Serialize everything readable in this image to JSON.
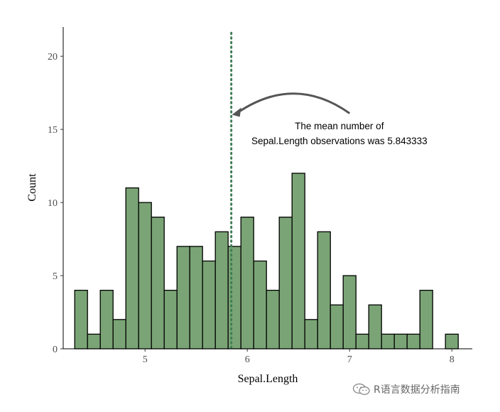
{
  "chart_data": {
    "type": "histogram",
    "xlabel": "Sepal.Length",
    "ylabel": "Count",
    "xlim": [
      4.2,
      8.2
    ],
    "ylim": [
      0,
      22
    ],
    "x_ticks": [
      5,
      6,
      7,
      8
    ],
    "y_ticks": [
      0,
      5,
      10,
      15,
      20
    ],
    "bin_width": 0.125,
    "bins": [
      {
        "x": 4.375,
        "count": 4
      },
      {
        "x": 4.5,
        "count": 1
      },
      {
        "x": 4.625,
        "count": 4
      },
      {
        "x": 4.75,
        "count": 2
      },
      {
        "x": 4.875,
        "count": 11
      },
      {
        "x": 5.0,
        "count": 10
      },
      {
        "x": 5.125,
        "count": 9
      },
      {
        "x": 5.25,
        "count": 4
      },
      {
        "x": 5.375,
        "count": 7
      },
      {
        "x": 5.5,
        "count": 7
      },
      {
        "x": 5.625,
        "count": 6
      },
      {
        "x": 5.75,
        "count": 8
      },
      {
        "x": 5.875,
        "count": 7
      },
      {
        "x": 6.0,
        "count": 9
      },
      {
        "x": 6.125,
        "count": 6
      },
      {
        "x": 6.25,
        "count": 4
      },
      {
        "x": 6.375,
        "count": 9
      },
      {
        "x": 6.5,
        "count": 12
      },
      {
        "x": 6.625,
        "count": 2
      },
      {
        "x": 6.75,
        "count": 8
      },
      {
        "x": 6.875,
        "count": 3
      },
      {
        "x": 7.0,
        "count": 5
      },
      {
        "x": 7.125,
        "count": 1
      },
      {
        "x": 7.25,
        "count": 3
      },
      {
        "x": 7.375,
        "count": 1
      },
      {
        "x": 7.5,
        "count": 1
      },
      {
        "x": 7.625,
        "count": 1
      },
      {
        "x": 7.75,
        "count": 4
      },
      {
        "x": 7.875,
        "count": 0
      },
      {
        "x": 8.0,
        "count": 1
      }
    ],
    "bar_fill": "#7aa475",
    "bar_stroke": "#000000",
    "mean_line": {
      "x": 5.843333,
      "color": "#3f7f55",
      "style": "dotted"
    },
    "annotation": {
      "line1": "The mean number of",
      "line2": "Sepal.Length observations was 5.843333",
      "text_x": 6.9,
      "text_y": 15.2,
      "arrow_from": [
        7.0,
        16.1
      ],
      "arrow_to": [
        5.85,
        16.0
      ]
    },
    "grid": false
  },
  "watermark": {
    "text": "R语言数据分析指南",
    "icon": "wechat-icon"
  }
}
